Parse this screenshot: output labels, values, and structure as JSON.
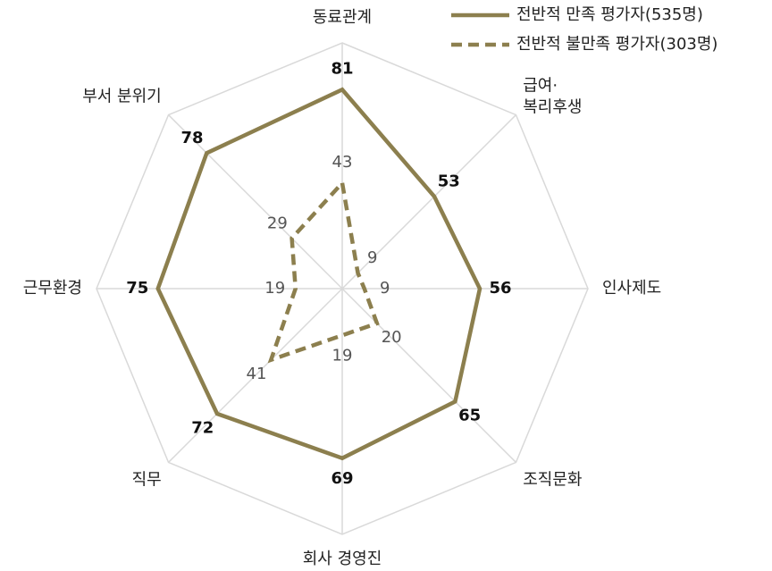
{
  "chart_data": {
    "type": "radar",
    "categories": [
      "동료관계",
      "급여·\n복리후생",
      "인사제도",
      "조직문화",
      "회사 경영진",
      "직무",
      "근무환경",
      "부서 분위기"
    ],
    "series": [
      {
        "name": "전반적 만족 평가자(535명)",
        "color": "#8c7f4e",
        "dash": false,
        "values": [
          81,
          53,
          56,
          65,
          69,
          72,
          75,
          78
        ]
      },
      {
        "name": "전반적 불만족 평가자(303명)",
        "color": "#8c7f4e",
        "dash": true,
        "values": [
          43,
          9,
          9,
          20,
          19,
          41,
          19,
          29
        ]
      }
    ],
    "ylim": [
      0,
      100
    ],
    "grid": true,
    "legend": "top-right"
  }
}
